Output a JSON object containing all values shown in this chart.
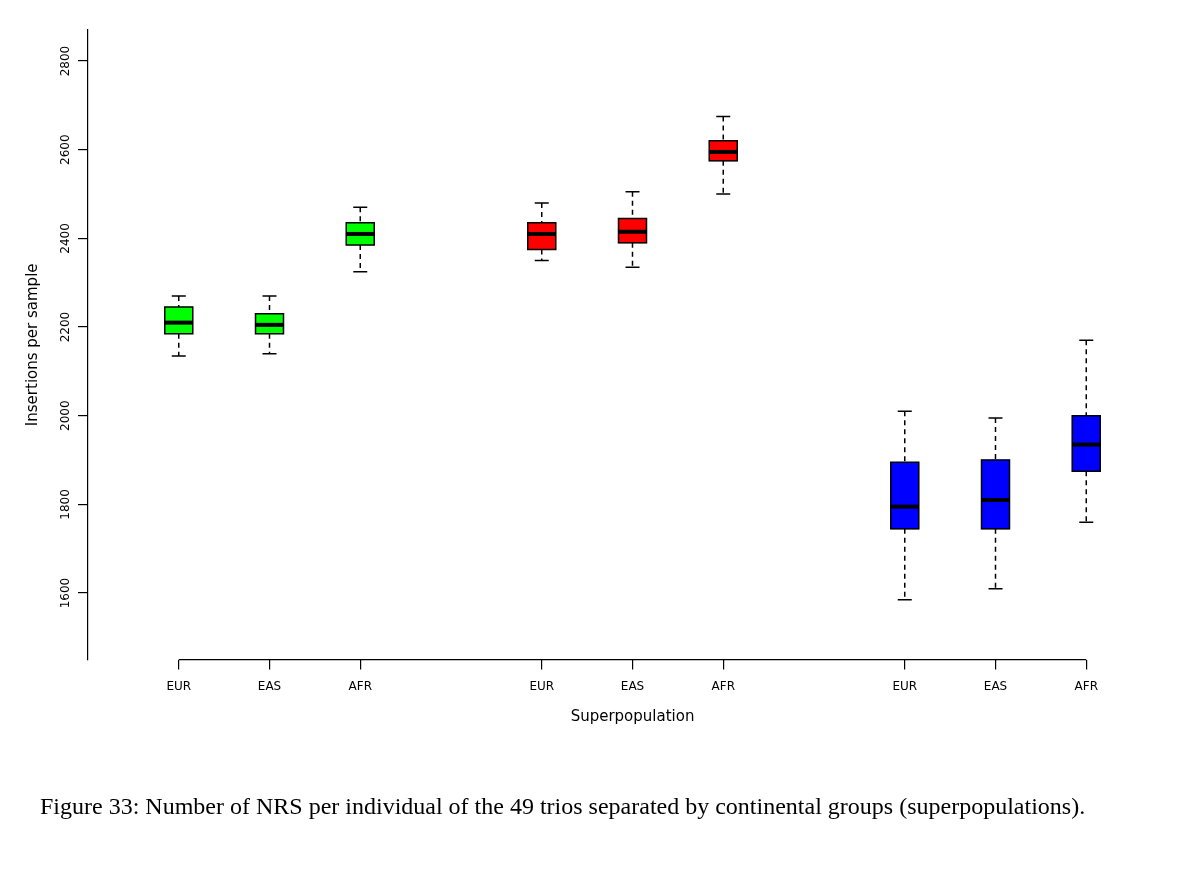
{
  "chart_data": {
    "type": "box",
    "xlabel": "Superpopulation",
    "ylabel": "Insertions per sample",
    "categories": [
      "EUR",
      "EAS",
      "AFR",
      "EUR",
      "EAS",
      "AFR",
      "EUR",
      "EAS",
      "AFR"
    ],
    "ylim": [
      1450,
      2870
    ],
    "yticks": [
      1600,
      1800,
      2000,
      2200,
      2400,
      2600,
      2800
    ],
    "grid": false,
    "legend": false,
    "series": [
      {
        "color": "#00ff00",
        "boxes": [
          {
            "low": 2135,
            "q1": 2185,
            "median": 2210,
            "q3": 2245,
            "high": 2270
          },
          {
            "low": 2140,
            "q1": 2185,
            "median": 2205,
            "q3": 2230,
            "high": 2270
          },
          {
            "low": 2325,
            "q1": 2385,
            "median": 2410,
            "q3": 2435,
            "high": 2470
          },
          null,
          null,
          null,
          null,
          null,
          null
        ]
      },
      {
        "color": "#ff0000",
        "boxes": [
          null,
          null,
          null,
          {
            "low": 2350,
            "q1": 2375,
            "median": 2410,
            "q3": 2435,
            "high": 2480
          },
          {
            "low": 2335,
            "q1": 2390,
            "median": 2415,
            "q3": 2445,
            "high": 2505
          },
          {
            "low": 2500,
            "q1": 2575,
            "median": 2595,
            "q3": 2620,
            "high": 2675
          },
          null,
          null,
          null
        ]
      },
      {
        "color": "#0000ff",
        "boxes": [
          null,
          null,
          null,
          null,
          null,
          null,
          {
            "low": 1585,
            "q1": 1745,
            "median": 1795,
            "q3": 1895,
            "high": 2010
          },
          {
            "low": 1610,
            "q1": 1745,
            "median": 1810,
            "q3": 1900,
            "high": 1995
          },
          {
            "low": 1760,
            "q1": 1875,
            "median": 1935,
            "q3": 2000,
            "high": 2170
          }
        ]
      }
    ],
    "annotations": [
      "Figure 33: Number of NRS per individual of the 49 trios separated by continental groups (superpopulations)."
    ]
  }
}
